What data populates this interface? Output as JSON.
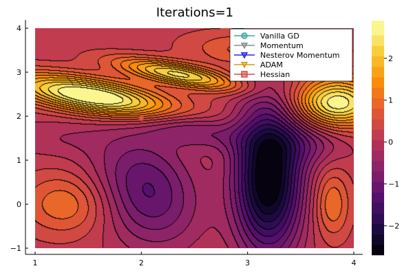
{
  "title": "Iterations=1",
  "chart_data": {
    "type": "contour",
    "title": "Iterations=1",
    "xlim": [
      1,
      4
    ],
    "ylim": [
      -1,
      4
    ],
    "x_ticks": [
      "1",
      "2",
      "3",
      "4"
    ],
    "y_ticks": [
      "−1",
      "0",
      "1",
      "2",
      "3",
      "4"
    ],
    "colorbar": {
      "range": [
        -2.7,
        2.9
      ],
      "ticks": [
        "−2",
        "−1",
        "0",
        "1",
        "2"
      ],
      "levels": [
        -2.7,
        -2.45,
        -2.2,
        -1.95,
        -1.7,
        -1.45,
        -1.2,
        -0.95,
        -0.7,
        -0.45,
        -0.2,
        0.05,
        0.3,
        0.55,
        0.8,
        1.05,
        1.3,
        1.55,
        1.8,
        2.05,
        2.3,
        2.55,
        2.9
      ],
      "colormap": "inferno"
    },
    "legend_position": "top-right",
    "series": [
      {
        "name": "Vanilla GD",
        "color": "#3da5a5",
        "marker": "circle",
        "points": [
          [
            2.0,
            1.95
          ]
        ]
      },
      {
        "name": "Momentum",
        "color": "#8c8c8c",
        "marker": "triangle-down",
        "points": [
          [
            2.0,
            1.95
          ]
        ]
      },
      {
        "name": "Nesterov Momentum",
        "color": "#2626e6",
        "marker": "triangle-down",
        "points": [
          [
            2.0,
            1.95
          ]
        ]
      },
      {
        "name": "ADAM",
        "color": "#d99a16",
        "marker": "triangle-down",
        "points": [
          [
            2.0,
            1.95
          ]
        ]
      },
      {
        "name": "Hessian",
        "color": "#d94545",
        "marker": "square",
        "points": [
          [
            2.0,
            1.95
          ]
        ]
      }
    ]
  }
}
